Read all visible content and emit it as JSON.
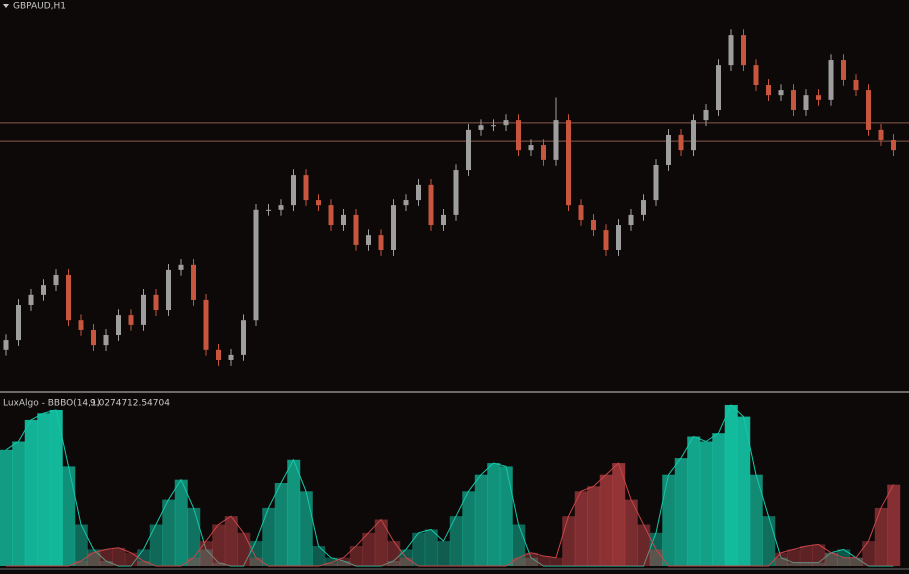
{
  "chart_data": [
    {
      "type": "candlestick",
      "title": "GBPAUD,H1",
      "ylim": [
        0,
        100
      ],
      "up_color": "#9e9e9e",
      "down_color": "#c8553d",
      "hlines": [
        68.5,
        63.8
      ],
      "hline_color": "#8a5a50",
      "open": [
        10.3,
        12.8,
        21.8,
        24.4,
        26.9,
        29.5,
        17.9,
        15.4,
        11.5,
        14.1,
        19.2,
        16.7,
        24.4,
        20.5,
        30.8,
        32.1,
        23.1,
        10.3,
        7.7,
        9.0,
        17.9,
        46.2,
        46.2,
        47.4,
        55.1,
        48.7,
        47.4,
        42.3,
        44.9,
        37.2,
        39.7,
        35.9,
        47.4,
        48.7,
        52.6,
        42.3,
        44.9,
        56.4,
        66.7,
        67.9,
        67.9,
        69.2,
        61.5,
        62.8,
        59.0,
        69.2,
        47.4,
        43.6,
        41.0,
        35.9,
        42.3,
        44.9,
        48.7,
        57.7,
        65.4,
        61.5,
        69.2,
        71.8,
        83.3,
        91.0,
        83.3,
        78.2,
        75.6,
        76.9,
        71.8,
        75.6,
        74.4,
        84.6,
        79.5,
        76.9,
        66.7,
        64.1
      ],
      "high": [
        14.3,
        23.3,
        25.9,
        28.4,
        31.0,
        31.0,
        19.4,
        16.9,
        15.6,
        20.7,
        20.7,
        25.9,
        25.9,
        32.3,
        33.6,
        33.6,
        24.6,
        11.8,
        10.5,
        19.4,
        47.7,
        47.7,
        48.9,
        56.6,
        56.6,
        50.2,
        48.9,
        46.4,
        46.4,
        41.2,
        41.2,
        48.9,
        50.2,
        54.1,
        54.1,
        46.4,
        57.9,
        68.2,
        69.4,
        69.4,
        70.7,
        70.7,
        64.3,
        64.3,
        75.0,
        70.7,
        48.9,
        45.1,
        42.5,
        43.8,
        46.4,
        50.2,
        59.2,
        66.9,
        66.9,
        70.7,
        73.3,
        84.8,
        92.5,
        92.5,
        84.8,
        79.7,
        78.4,
        78.4,
        77.1,
        77.1,
        86.1,
        86.1,
        81.0,
        78.4,
        68.2,
        65.6
      ],
      "low": [
        8.8,
        11.3,
        20.3,
        22.9,
        25.4,
        16.4,
        13.9,
        10.0,
        10.0,
        12.6,
        15.2,
        15.2,
        19.0,
        19.0,
        29.3,
        21.6,
        8.8,
        6.2,
        6.2,
        7.5,
        16.4,
        44.7,
        44.7,
        45.9,
        47.2,
        45.9,
        40.8,
        40.8,
        35.7,
        35.7,
        34.4,
        34.4,
        45.9,
        47.2,
        40.8,
        40.8,
        43.4,
        54.9,
        65.2,
        66.4,
        66.4,
        60.0,
        60.0,
        57.5,
        57.5,
        45.9,
        42.1,
        39.5,
        34.4,
        34.4,
        40.8,
        43.4,
        47.2,
        56.2,
        60.0,
        60.0,
        67.7,
        70.3,
        81.8,
        81.8,
        76.7,
        74.1,
        74.1,
        70.3,
        70.3,
        72.9,
        72.9,
        78.0,
        75.4,
        65.2,
        62.6,
        60.0
      ],
      "close": [
        12.8,
        21.8,
        24.4,
        26.9,
        29.5,
        17.9,
        15.4,
        11.5,
        14.1,
        19.2,
        16.7,
        24.4,
        20.5,
        30.8,
        32.1,
        23.1,
        10.3,
        7.7,
        9.0,
        17.9,
        46.2,
        46.2,
        47.4,
        55.1,
        48.7,
        47.4,
        42.3,
        44.9,
        37.2,
        39.7,
        35.9,
        47.4,
        48.7,
        52.6,
        42.3,
        44.9,
        56.4,
        66.7,
        67.9,
        67.9,
        69.2,
        61.5,
        62.8,
        59.0,
        69.2,
        47.4,
        43.6,
        41.0,
        35.9,
        42.3,
        44.9,
        48.7,
        57.7,
        65.4,
        61.5,
        69.2,
        71.8,
        83.3,
        91.0,
        83.3,
        78.2,
        75.6,
        76.9,
        71.8,
        75.6,
        74.4,
        84.6,
        79.5,
        76.9,
        66.7,
        64.1,
        61.5
      ]
    },
    {
      "type": "area",
      "title": "LuxAlgo - BBBO(14,1)",
      "readouts": [
        9.02747,
        12.54704
      ],
      "ylim": [
        0,
        100
      ],
      "series": [
        {
          "color": "#14c8a8",
          "values": [
            70,
            75,
            88,
            92,
            94,
            60,
            25,
            10,
            3,
            0,
            0,
            10,
            25,
            40,
            52,
            35,
            10,
            2,
            0,
            0,
            15,
            35,
            50,
            64,
            45,
            12,
            5,
            3,
            0,
            0,
            0,
            3,
            10,
            20,
            22,
            15,
            30,
            45,
            55,
            62,
            60,
            25,
            5,
            0,
            0,
            0,
            0,
            0,
            0,
            0,
            0,
            0,
            20,
            55,
            65,
            78,
            75,
            80,
            97,
            90,
            55,
            30,
            5,
            2,
            2,
            2,
            8,
            10,
            5,
            0,
            0,
            0
          ]
        },
        {
          "color": "#c8454a",
          "values": [
            0,
            0,
            0,
            0,
            0,
            0,
            3,
            8,
            10,
            11,
            8,
            3,
            0,
            0,
            0,
            5,
            15,
            25,
            30,
            20,
            5,
            0,
            0,
            0,
            0,
            0,
            2,
            5,
            12,
            20,
            28,
            15,
            5,
            0,
            0,
            0,
            0,
            0,
            0,
            0,
            0,
            5,
            8,
            6,
            5,
            30,
            45,
            48,
            55,
            62,
            40,
            25,
            10,
            0,
            0,
            0,
            0,
            0,
            0,
            0,
            0,
            0,
            8,
            10,
            12,
            13,
            8,
            5,
            5,
            15,
            35,
            49
          ]
        }
      ]
    }
  ]
}
